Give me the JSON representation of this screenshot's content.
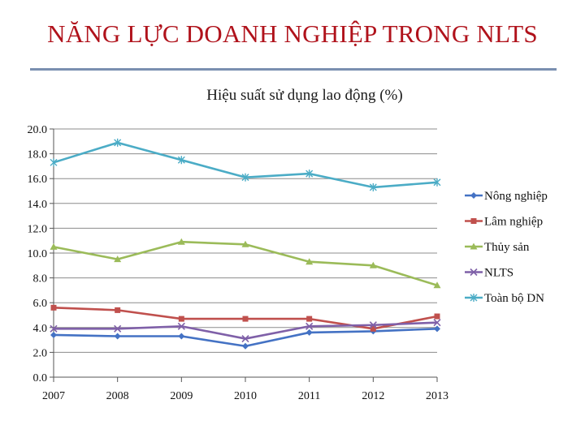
{
  "slide": {
    "title": "NĂNG LỰC DOANH NGHIỆP TRONG NLTS"
  },
  "chart_data": {
    "type": "line",
    "title": "Hiệu suất sử dụng lao động (%)",
    "xlabel": "",
    "ylabel": "",
    "categories": [
      "2007",
      "2008",
      "2009",
      "2010",
      "2011",
      "2012",
      "2013"
    ],
    "ylim": [
      0,
      20
    ],
    "yticks": [
      "0.0",
      "2.0",
      "4.0",
      "6.0",
      "8.0",
      "10.0",
      "12.0",
      "14.0",
      "16.0",
      "18.0",
      "20.0"
    ],
    "grid": true,
    "legend_position": "right",
    "series": [
      {
        "name": "Nông nghiệp",
        "color": "#4472c4",
        "marker": "diamond",
        "values": [
          3.4,
          3.3,
          3.3,
          2.5,
          3.6,
          3.7,
          3.9
        ]
      },
      {
        "name": "Lâm nghiệp",
        "color": "#c0504d",
        "marker": "square",
        "values": [
          5.6,
          5.4,
          4.7,
          4.7,
          4.7,
          3.9,
          4.9
        ]
      },
      {
        "name": "Thủy sản",
        "color": "#9bbb59",
        "marker": "triangle",
        "values": [
          10.5,
          9.5,
          10.9,
          10.7,
          9.3,
          9.0,
          7.4
        ]
      },
      {
        "name": "NLTS",
        "color": "#7f60a8",
        "marker": "x",
        "values": [
          3.9,
          3.9,
          4.1,
          3.1,
          4.1,
          4.2,
          4.4
        ]
      },
      {
        "name": "Toàn bộ DN",
        "color": "#4bacc6",
        "marker": "star",
        "values": [
          17.3,
          18.9,
          17.5,
          16.1,
          16.4,
          15.3,
          15.7
        ]
      }
    ]
  }
}
